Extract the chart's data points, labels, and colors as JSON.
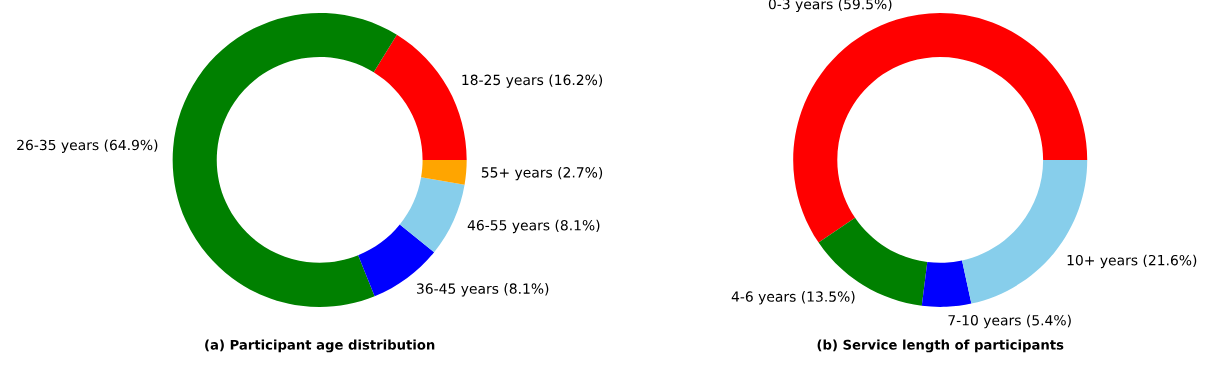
{
  "chart_data": [
    {
      "type": "donut",
      "title": "(a) Participant age distribution",
      "categories": [
        "18-25 years (16.2%)",
        "26-35 years (64.9%)",
        "36-45 years (8.1%)",
        "46-55 years (8.1%)",
        "55+ years (2.7%)"
      ],
      "values": [
        16.2,
        64.9,
        8.1,
        8.1,
        2.7
      ],
      "colors": [
        "#ff0000",
        "#008000",
        "#0000ff",
        "#87ceeb",
        "#ffa500"
      ]
    },
    {
      "type": "donut",
      "title": "(b) Service length of participants",
      "categories": [
        "0-3 years (59.5%)",
        "4-6 years (13.5%)",
        "7-10 years (5.4%)",
        "10+ years (21.6%)"
      ],
      "values": [
        59.5,
        13.5,
        5.4,
        21.6
      ],
      "colors": [
        "#ff0000",
        "#008000",
        "#0000ff",
        "#87ceeb"
      ]
    }
  ]
}
